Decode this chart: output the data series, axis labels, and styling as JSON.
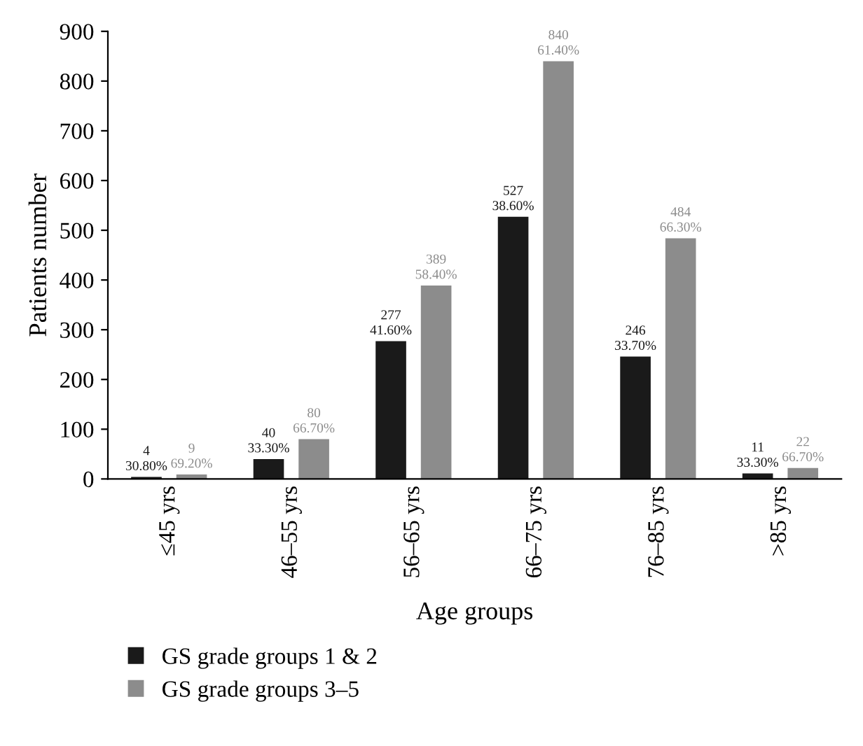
{
  "chart_data": {
    "type": "bar",
    "xlabel": "Age groups",
    "ylabel": "Patients number",
    "categories": [
      "≤45 yrs",
      "46–55 yrs",
      "56–65 yrs",
      "66–75 yrs",
      "76–85 yrs",
      ">85 yrs"
    ],
    "series": [
      {
        "name": "GS grade groups 1 & 2",
        "color": "#1a1a1a",
        "values": [
          4,
          40,
          277,
          527,
          246,
          11
        ],
        "value_labels": [
          "4\n30.80%",
          "40\n33.30%",
          "277\n41.60%",
          "527\n38.60%",
          "246\n33.70%",
          "11\n33.30%"
        ]
      },
      {
        "name": "GS grade groups 3–5",
        "color": "#8c8c8c",
        "values": [
          9,
          80,
          389,
          840,
          484,
          22
        ],
        "value_labels": [
          "9\n69.20%",
          "80\n66.70%",
          "389\n58.40%",
          "840\n61.40%",
          "484\n66.30%",
          "22\n66.70%"
        ]
      }
    ],
    "ylim": [
      0,
      900
    ],
    "yticks": [
      0,
      100,
      200,
      300,
      400,
      500,
      600,
      700,
      800,
      900
    ],
    "grid": false,
    "legend": "bottom"
  }
}
